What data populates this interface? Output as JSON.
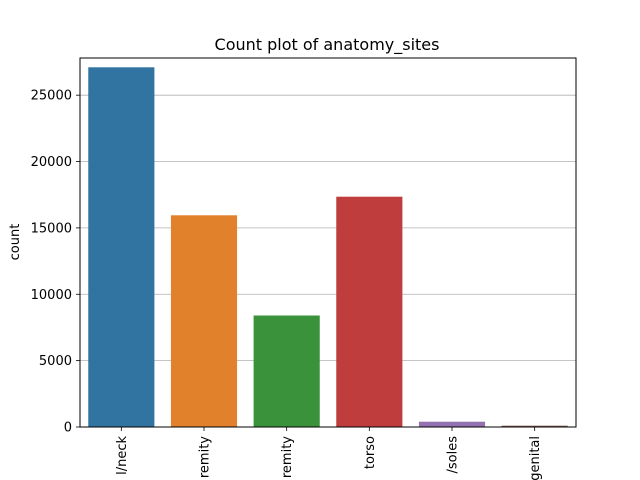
{
  "chart_data": {
    "type": "bar",
    "title": "Count plot of anatomy_sites",
    "xlabel": "",
    "ylabel": "count",
    "categories": [
      "l/neck",
      "remity",
      "remity",
      "torso",
      "/soles",
      "genital"
    ],
    "values": [
      27100,
      15950,
      8400,
      17350,
      400,
      100
    ],
    "colors": [
      "#3274a1",
      "#e1812c",
      "#3a923a",
      "#c03d3e",
      "#9372b2",
      "#845b53"
    ],
    "ylim": [
      0,
      27800
    ],
    "yticks": [
      0,
      5000,
      10000,
      15000,
      20000,
      25000
    ],
    "grid": "y"
  }
}
